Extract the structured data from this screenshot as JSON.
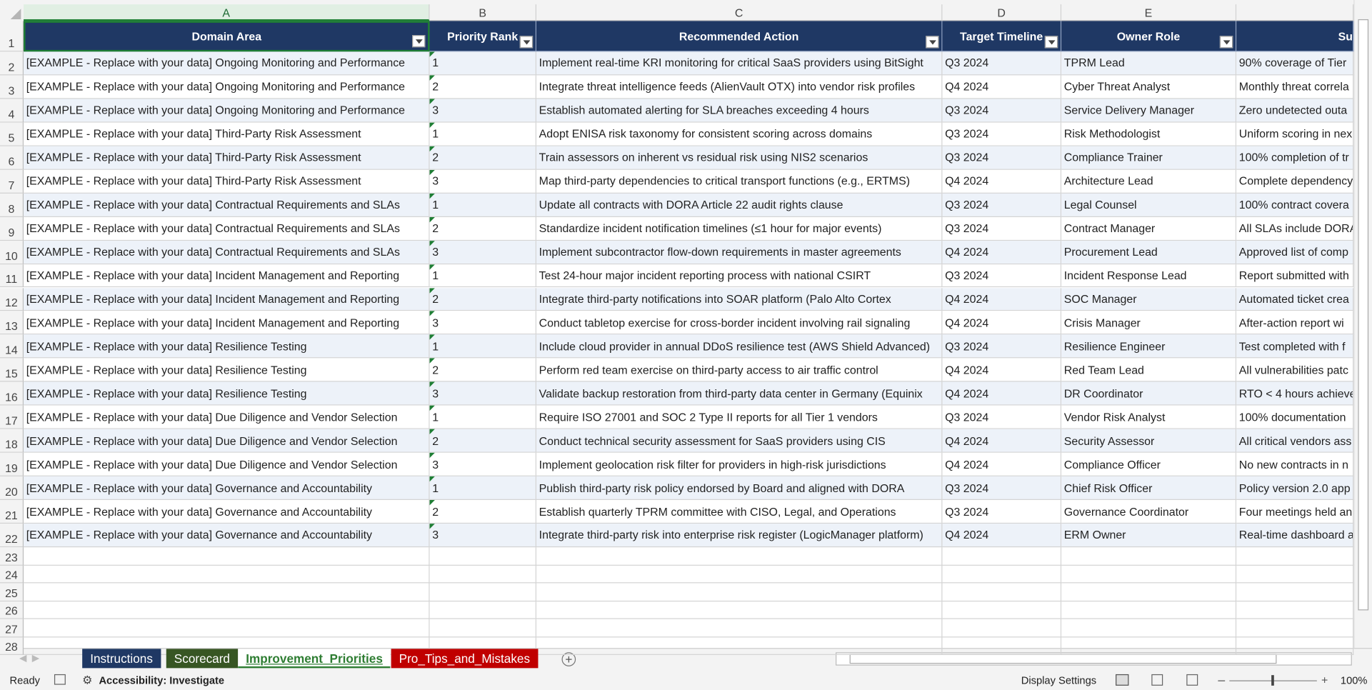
{
  "sheet": {
    "column_letters": [
      "A",
      "B",
      "C",
      "D",
      "E"
    ],
    "row_numbers": [
      1,
      2,
      3,
      4,
      5,
      6,
      7,
      8,
      9,
      10,
      11,
      12,
      13,
      14,
      15,
      16,
      17,
      18,
      19,
      20,
      21,
      22,
      23,
      24,
      25,
      26,
      27,
      28
    ],
    "headers": [
      "Domain Area",
      "Priority Rank",
      "Recommended Action",
      "Target Timeline",
      "Owner Role",
      "Su"
    ],
    "rows": [
      [
        "[EXAMPLE - Replace with your data] Ongoing Monitoring and Performance",
        1,
        "Implement real-time KRI monitoring for critical SaaS providers using BitSight",
        "Q3 2024",
        "TPRM Lead",
        "90% coverage of Tier"
      ],
      [
        "[EXAMPLE - Replace with your data] Ongoing Monitoring and Performance",
        2,
        "Integrate threat intelligence feeds (AlienVault OTX) into vendor risk profiles",
        "Q4 2024",
        "Cyber Threat Analyst",
        "Monthly threat correla"
      ],
      [
        "[EXAMPLE - Replace with your data] Ongoing Monitoring and Performance",
        3,
        "Establish automated alerting for SLA breaches exceeding 4 hours",
        "Q3 2024",
        "Service Delivery Manager",
        "Zero undetected outa"
      ],
      [
        "[EXAMPLE - Replace with your data] Third-Party Risk Assessment",
        1,
        "Adopt ENISA risk taxonomy for consistent scoring across domains",
        "Q3 2024",
        "Risk Methodologist",
        "Uniform scoring in nex"
      ],
      [
        "[EXAMPLE - Replace with your data] Third-Party Risk Assessment",
        2,
        "Train assessors on inherent vs residual risk using NIS2 scenarios",
        "Q3 2024",
        "Compliance Trainer",
        "100% completion of tr"
      ],
      [
        "[EXAMPLE - Replace with your data] Third-Party Risk Assessment",
        3,
        "Map third-party dependencies to critical transport functions (e.g., ERTMS)",
        "Q4 2024",
        "Architecture Lead",
        "Complete dependency"
      ],
      [
        "[EXAMPLE - Replace with your data] Contractual Requirements and SLAs",
        1,
        "Update all contracts with DORA Article 22 audit rights clause",
        "Q3 2024",
        "Legal Counsel",
        "100% contract covera"
      ],
      [
        "[EXAMPLE - Replace with your data] Contractual Requirements and SLAs",
        2,
        "Standardize incident notification timelines (≤1 hour for major events)",
        "Q3 2024",
        "Contract Manager",
        "All SLAs include DORA"
      ],
      [
        "[EXAMPLE - Replace with your data] Contractual Requirements and SLAs",
        3,
        "Implement subcontractor flow-down requirements in master agreements",
        "Q4 2024",
        "Procurement Lead",
        "Approved list of comp"
      ],
      [
        "[EXAMPLE - Replace with your data] Incident Management and Reporting",
        1,
        "Test 24-hour major incident reporting process with national CSIRT",
        "Q3 2024",
        "Incident Response Lead",
        "Report submitted with"
      ],
      [
        "[EXAMPLE - Replace with your data] Incident Management and Reporting",
        2,
        "Integrate third-party notifications into SOAR platform (Palo Alto Cortex",
        "Q4 2024",
        "SOC Manager",
        "Automated ticket crea"
      ],
      [
        "[EXAMPLE - Replace with your data] Incident Management and Reporting",
        3,
        "Conduct tabletop exercise for cross-border incident involving rail signaling",
        "Q4 2024",
        "Crisis Manager",
        "After-action report wi"
      ],
      [
        "[EXAMPLE - Replace with your data] Resilience Testing",
        1,
        "Include cloud provider in annual DDoS resilience test (AWS Shield Advanced)",
        "Q3 2024",
        "Resilience Engineer",
        "Test completed with f"
      ],
      [
        "[EXAMPLE - Replace with your data] Resilience Testing",
        2,
        "Perform red team exercise on third-party access to air traffic control",
        "Q4 2024",
        "Red Team Lead",
        "All vulnerabilities patc"
      ],
      [
        "[EXAMPLE - Replace with your data] Resilience Testing",
        3,
        "Validate backup restoration from third-party data center in Germany (Equinix",
        "Q4 2024",
        "DR Coordinator",
        "RTO < 4 hours achieve"
      ],
      [
        "[EXAMPLE - Replace with your data] Due Diligence and Vendor Selection",
        1,
        "Require ISO 27001 and SOC 2 Type II reports for all Tier 1 vendors",
        "Q3 2024",
        "Vendor Risk Analyst",
        "100% documentation"
      ],
      [
        "[EXAMPLE - Replace with your data] Due Diligence and Vendor Selection",
        2,
        "Conduct technical security assessment for SaaS providers using CIS",
        "Q4 2024",
        "Security Assessor",
        "All critical vendors ass"
      ],
      [
        "[EXAMPLE - Replace with your data] Due Diligence and Vendor Selection",
        3,
        "Implement geolocation risk filter for providers in high-risk jurisdictions",
        "Q4 2024",
        "Compliance Officer",
        "No new contracts in n"
      ],
      [
        "[EXAMPLE - Replace with your data] Governance and Accountability",
        1,
        "Publish third-party risk policy endorsed by Board and aligned with DORA",
        "Q3 2024",
        "Chief Risk Officer",
        "Policy version 2.0 app"
      ],
      [
        "[EXAMPLE - Replace with your data] Governance and Accountability",
        2,
        "Establish quarterly TPRM committee with CISO, Legal, and Operations",
        "Q3 2024",
        "Governance Coordinator",
        "Four meetings held an"
      ],
      [
        "[EXAMPLE - Replace with your data] Governance and Accountability",
        3,
        "Integrate third-party risk into enterprise risk register (LogicManager platform)",
        "Q4 2024",
        "ERM Owner",
        "Real-time dashboard a"
      ]
    ],
    "tabs": [
      "Instructions",
      "Scorecard",
      "Improvement_Priorities",
      "Pro_Tips_and_Mistakes"
    ],
    "status": {
      "mode": "Ready",
      "accessibility": "Accessibility: Investigate",
      "display": "Display Settings",
      "zoom": "100%"
    }
  }
}
